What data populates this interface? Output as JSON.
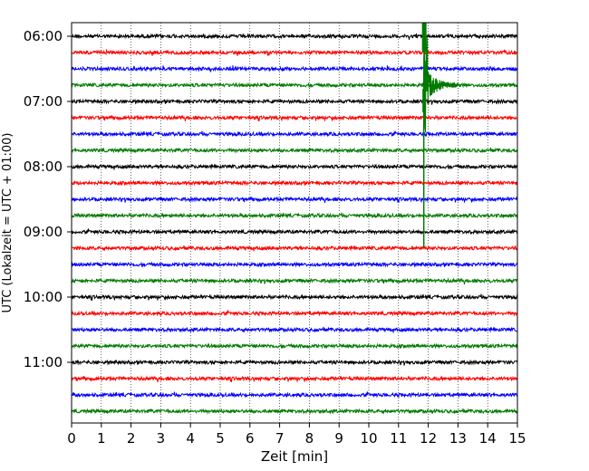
{
  "chart_data": {
    "type": "line",
    "title": "",
    "xlabel": "Zeit  [min]",
    "ylabel": "UTC (Lokalzeit = UTC + 01:00)",
    "xlim": [
      0,
      15
    ],
    "x_ticks": [
      "0",
      "1",
      "2",
      "3",
      "4",
      "5",
      "6",
      "7",
      "8",
      "9",
      "10",
      "11",
      "12",
      "13",
      "14",
      "15"
    ],
    "y_ticks": [
      "06:00",
      "07:00",
      "08:00",
      "09:00",
      "10:00",
      "11:00"
    ],
    "y_tick_rows": [
      0,
      4,
      8,
      12,
      16,
      20
    ],
    "trace_interval_min": 15,
    "rows": 24,
    "start_time": "06:00",
    "color_cycle": [
      "#000000",
      "#ff0000",
      "#0000ff",
      "#007a00"
    ],
    "grid": "vertical dotted",
    "events": [
      {
        "row": 3,
        "onset_min": 11.85,
        "description": "earthquake signal"
      }
    ]
  }
}
